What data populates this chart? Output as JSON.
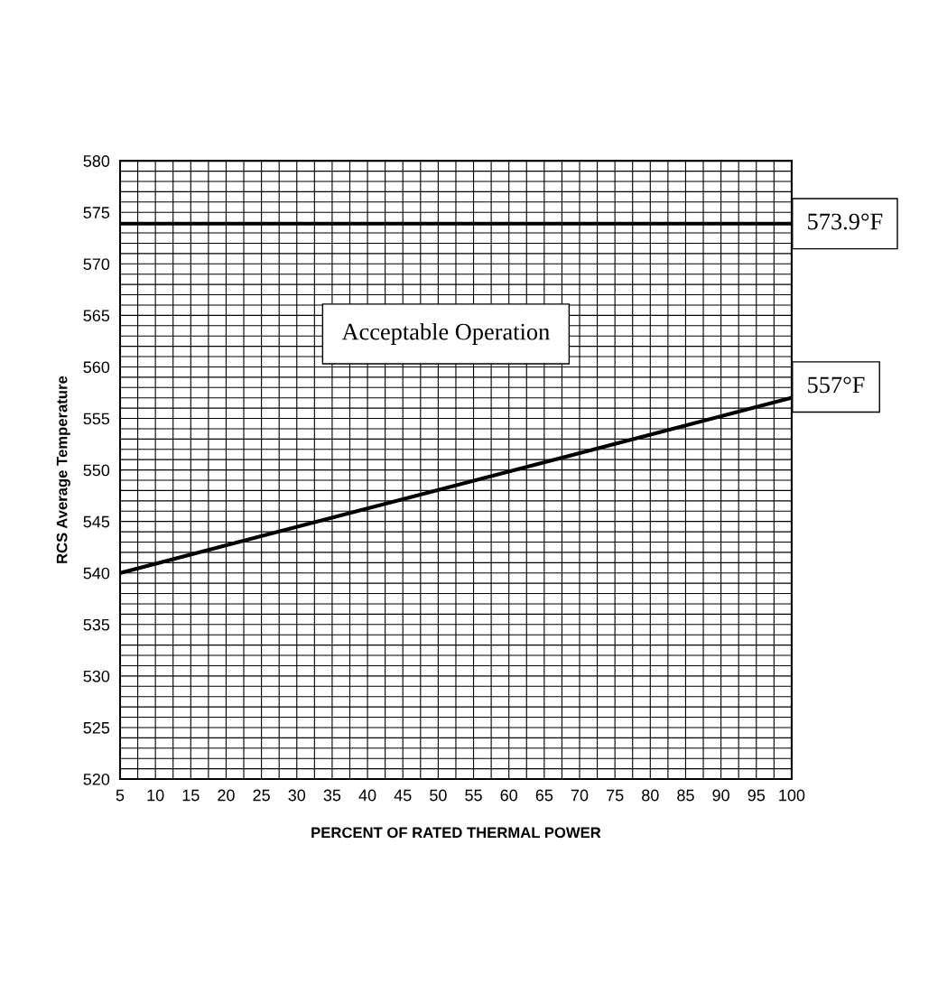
{
  "chart_data": {
    "type": "line",
    "xlabel": "PERCENT OF RATED THERMAL POWER",
    "ylabel": "RCS Average Temperature",
    "x": [
      5,
      100
    ],
    "series": [
      {
        "color": "#000000",
        "values": [
          540,
          557
        ]
      }
    ],
    "xlim": [
      5,
      100
    ],
    "ylim": [
      520,
      580
    ],
    "xticks": [
      5,
      {
        "value": 7.5,
        "label": null
      },
      10,
      {
        "value": 12.5,
        "label": null
      },
      15,
      {
        "value": 17.5,
        "label": null
      },
      20,
      {
        "value": 22.5,
        "label": null
      },
      25,
      {
        "value": 27.5,
        "label": null
      },
      30,
      {
        "value": 32.5,
        "label": null
      },
      35,
      {
        "value": 37.5,
        "label": null
      },
      40,
      {
        "value": 42.5,
        "label": null
      },
      45,
      {
        "value": 47.5,
        "label": null
      },
      50,
      {
        "value": 52.5,
        "label": null
      },
      55,
      {
        "value": 57.5,
        "label": null
      },
      60,
      {
        "value": 62.5,
        "label": null
      },
      65,
      {
        "value": 67.5,
        "label": null
      },
      70,
      {
        "value": 72.5,
        "label": null
      },
      75,
      {
        "value": 77.5,
        "label": null
      },
      80,
      {
        "value": 82.5,
        "label": null
      },
      85,
      {
        "value": 87.5,
        "label": null
      },
      90,
      {
        "value": 92.5,
        "label": null
      },
      95,
      {
        "value": 97.5,
        "label": null
      },
      100
    ],
    "yticks": [
      520,
      {
        "value": 521,
        "label": null
      },
      {
        "value": 522,
        "label": null
      },
      {
        "value": 523,
        "label": null
      },
      {
        "value": 524,
        "label": null
      },
      525,
      {
        "value": 526,
        "label": null
      },
      {
        "value": 527,
        "label": null
      },
      {
        "value": 528,
        "label": null
      },
      {
        "value": 529,
        "label": null
      },
      530,
      {
        "value": 531,
        "label": null
      },
      {
        "value": 532,
        "label": null
      },
      {
        "value": 533,
        "label": null
      },
      {
        "value": 534,
        "label": null
      },
      535,
      {
        "value": 536,
        "label": null
      },
      {
        "value": 537,
        "label": null
      },
      {
        "value": 538,
        "label": null
      },
      {
        "value": 539,
        "label": null
      },
      540,
      {
        "value": 541,
        "label": null
      },
      {
        "value": 542,
        "label": null
      },
      {
        "value": 543,
        "label": null
      },
      {
        "value": 544,
        "label": null
      },
      545,
      {
        "value": 546,
        "label": null
      },
      {
        "value": 547,
        "label": null
      },
      {
        "value": 548,
        "label": null
      },
      {
        "value": 549,
        "label": null
      },
      550,
      {
        "value": 551,
        "label": null
      },
      {
        "value": 552,
        "label": null
      },
      {
        "value": 553,
        "label": null
      },
      {
        "value": 554,
        "label": null
      },
      555,
      {
        "value": 556,
        "label": null
      },
      {
        "value": 557,
        "label": null
      },
      {
        "value": 558,
        "label": null
      },
      {
        "value": 559,
        "label": null
      },
      560,
      {
        "value": 561,
        "label": null
      },
      {
        "value": 562,
        "label": null
      },
      {
        "value": 563,
        "label": null
      },
      {
        "value": 564,
        "label": null
      },
      565,
      {
        "value": 566,
        "label": null
      },
      {
        "value": 567,
        "label": null
      },
      {
        "value": 568,
        "label": null
      },
      {
        "value": 569,
        "label": null
      },
      570,
      {
        "value": 571,
        "label": null
      },
      {
        "value": 572,
        "label": null
      },
      {
        "value": 573,
        "label": null
      },
      {
        "value": 574,
        "label": null
      },
      575,
      {
        "value": 576,
        "label": null
      },
      {
        "value": 577,
        "label": null
      },
      {
        "value": 578,
        "label": null
      },
      {
        "value": 579,
        "label": null
      },
      580
    ],
    "grid": true,
    "marker": "none",
    "line_style": "solid",
    "ref_lines": [
      {
        "axis": "y",
        "value": 573.9,
        "label": "573.9°F",
        "color": "#000000",
        "line_style": "solid"
      }
    ],
    "annotations": [
      {
        "text": "557°F",
        "x": 100,
        "y": 557
      },
      "Acceptable Operation"
    ]
  }
}
